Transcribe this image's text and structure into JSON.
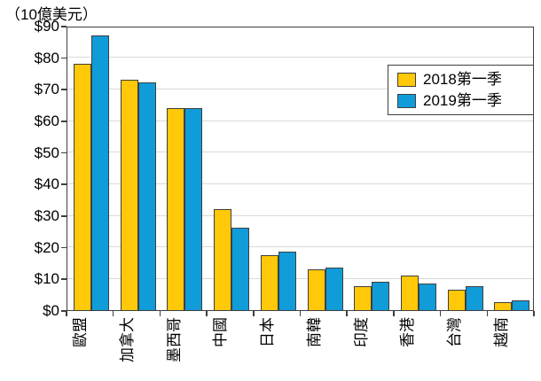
{
  "chart_data": {
    "type": "bar",
    "title": "（10億美元）",
    "categories": [
      "歐盟",
      "加拿大",
      "墨西哥",
      "中國",
      "日本",
      "南韓",
      "印度",
      "香港",
      "台灣",
      "越南"
    ],
    "series": [
      {
        "name": "2018第一季",
        "color": "#FFC808",
        "values": [
          78,
          73,
          64,
          32,
          17.5,
          13,
          7.5,
          11,
          6.5,
          2.5
        ]
      },
      {
        "name": "2019第一季",
        "color": "#0F9CD8",
        "values": [
          87,
          72,
          64,
          26,
          18.5,
          13.5,
          9,
          8.5,
          7.5,
          3
        ]
      }
    ],
    "ylim": [
      0,
      90
    ],
    "ytick_interval": 10,
    "ytick_labels": [
      "$0",
      "$10",
      "$20",
      "$30",
      "$40",
      "$50",
      "$60",
      "$70",
      "$80",
      "$90"
    ],
    "grid": true,
    "legend_position": "top-right",
    "style": {
      "axis_color": "#3f3f3f",
      "gridline_color": "#d9d9d9",
      "text_color": "#000000"
    }
  }
}
